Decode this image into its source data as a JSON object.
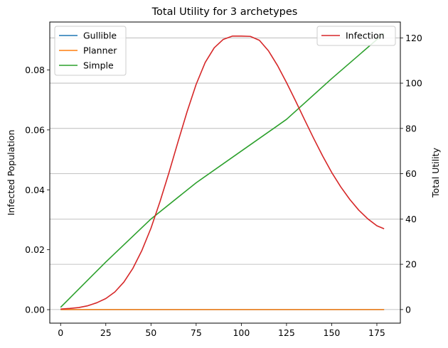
{
  "chart_data": {
    "type": "line",
    "title": "Total Utility for 3 archetypes",
    "xlabel": "",
    "ylabel": "Infected Population",
    "ylabel_right": "Total Utility",
    "xlim": [
      -6,
      188
    ],
    "ylim": [
      -0.0045,
      0.096
    ],
    "ylim_right": [
      -6,
      127
    ],
    "x_ticks": [
      0,
      25,
      50,
      75,
      100,
      125,
      150,
      175
    ],
    "y_ticks": [
      0.0,
      0.02,
      0.04,
      0.06,
      0.08
    ],
    "y_tick_labels": [
      "0.00",
      "0.02",
      "0.04",
      "0.06",
      "0.08"
    ],
    "y_ticks_right": [
      0,
      20,
      40,
      60,
      80,
      100,
      120
    ],
    "grid": "horizontal lines at right-axis ticks",
    "legend_left": {
      "placement": "upper left",
      "entries": [
        "Gullible",
        "Planner",
        "Simple"
      ]
    },
    "legend_right": {
      "placement": "upper right",
      "entries": [
        "Infection"
      ]
    },
    "colors": {
      "Gullible": "#1f77b4",
      "Planner": "#ff7f0e",
      "Simple": "#2ca02c",
      "Infection": "#d62728"
    },
    "series": [
      {
        "name": "Infection",
        "axis": "left",
        "x": [
          0,
          5,
          10,
          15,
          20,
          25,
          30,
          35,
          40,
          45,
          50,
          55,
          60,
          65,
          70,
          75,
          80,
          85,
          90,
          95,
          100,
          105,
          110,
          115,
          120,
          125,
          130,
          135,
          140,
          145,
          150,
          155,
          160,
          165,
          170,
          175,
          179
        ],
        "values": [
          0.0002,
          0.0004,
          0.0007,
          0.0013,
          0.0023,
          0.0037,
          0.0059,
          0.0092,
          0.0138,
          0.0198,
          0.0272,
          0.0361,
          0.0458,
          0.0561,
          0.0661,
          0.0752,
          0.0825,
          0.0874,
          0.0902,
          0.0913,
          0.0913,
          0.0912,
          0.0899,
          0.0864,
          0.0815,
          0.0758,
          0.0697,
          0.0634,
          0.0572,
          0.0513,
          0.0458,
          0.041,
          0.0368,
          0.0332,
          0.0303,
          0.028,
          0.027
        ]
      },
      {
        "name": "Gullible",
        "axis": "right",
        "x": [
          0,
          179
        ],
        "values": [
          0,
          0
        ]
      },
      {
        "name": "Planner",
        "axis": "right",
        "x": [
          0,
          179
        ],
        "values": [
          0,
          0
        ]
      },
      {
        "name": "Simple",
        "axis": "right",
        "x": [
          0,
          25,
          50,
          75,
          100,
          125,
          150,
          179
        ],
        "values": [
          1,
          21,
          40,
          56,
          70,
          84,
          102,
          122
        ]
      }
    ]
  }
}
